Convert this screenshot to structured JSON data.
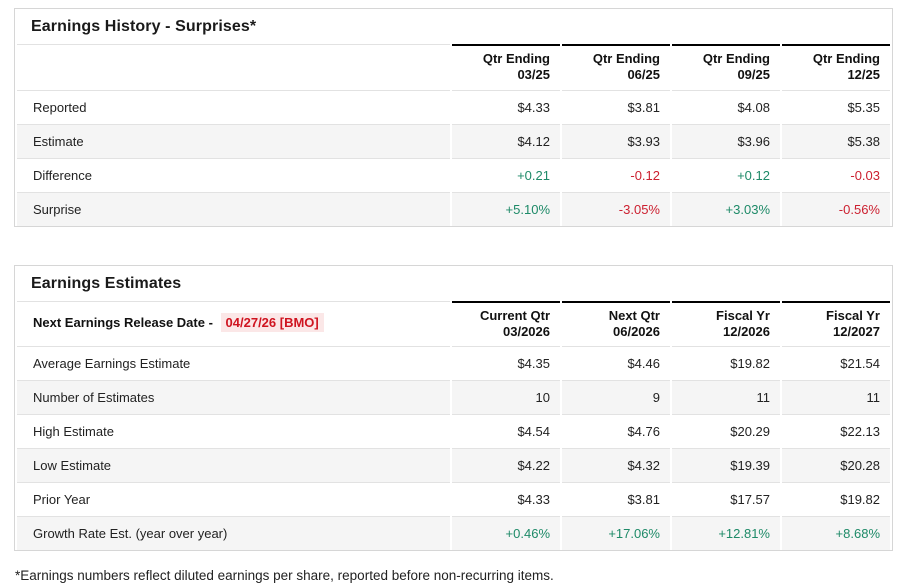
{
  "page": {
    "footnote": "*Earnings numbers reflect diluted earnings per share, reported before non-recurring items."
  },
  "colors": {
    "positive": "#1e8a68",
    "negative": "#cc2030",
    "release_text": "#cf1420",
    "release_bg": "#fbe7e7",
    "stripe": "#f5f5f5",
    "panel_border": "#d6d6d6",
    "row_border": "#e2e2e2",
    "header_top": "#000000",
    "text": "#222222"
  },
  "earnings_history": {
    "title": "Earnings History - Surprises*",
    "columns": [
      {
        "line1": "Qtr Ending",
        "line2": "03/25"
      },
      {
        "line1": "Qtr Ending",
        "line2": "06/25"
      },
      {
        "line1": "Qtr Ending",
        "line2": "09/25"
      },
      {
        "line1": "Qtr Ending",
        "line2": "12/25"
      }
    ],
    "rows": [
      {
        "label": "Reported",
        "values": [
          "$4.33",
          "$3.81",
          "$4.08",
          "$5.35"
        ]
      },
      {
        "label": "Estimate",
        "values": [
          "$4.12",
          "$3.93",
          "$3.96",
          "$5.38"
        ]
      },
      {
        "label": "Difference",
        "values": [
          "+0.21",
          "-0.12",
          "+0.12",
          "-0.03"
        ]
      },
      {
        "label": "Surprise",
        "values": [
          "+5.10%",
          "-3.05%",
          "+3.03%",
          "-0.56%"
        ]
      }
    ]
  },
  "earnings_estimates": {
    "title": "Earnings Estimates",
    "release_label": "Next Earnings Release Date -",
    "release_date": "04/27/26 [BMO]",
    "columns": [
      {
        "line1": "Current Qtr",
        "line2": "03/2026"
      },
      {
        "line1": "Next Qtr",
        "line2": "06/2026"
      },
      {
        "line1": "Fiscal Yr",
        "line2": "12/2026"
      },
      {
        "line1": "Fiscal Yr",
        "line2": "12/2027"
      }
    ],
    "rows": [
      {
        "label": "Average Earnings Estimate",
        "values": [
          "$4.35",
          "$4.46",
          "$19.82",
          "$21.54"
        ]
      },
      {
        "label": "Number of Estimates",
        "values": [
          "10",
          "9",
          "11",
          "11"
        ]
      },
      {
        "label": "High Estimate",
        "values": [
          "$4.54",
          "$4.76",
          "$20.29",
          "$22.13"
        ]
      },
      {
        "label": "Low Estimate",
        "values": [
          "$4.22",
          "$4.32",
          "$19.39",
          "$20.28"
        ]
      },
      {
        "label": "Prior Year",
        "values": [
          "$4.33",
          "$3.81",
          "$17.57",
          "$19.82"
        ]
      },
      {
        "label": "Growth Rate Est. (year over year)",
        "values": [
          "+0.46%",
          "+17.06%",
          "+12.81%",
          "+8.68%"
        ]
      }
    ]
  }
}
